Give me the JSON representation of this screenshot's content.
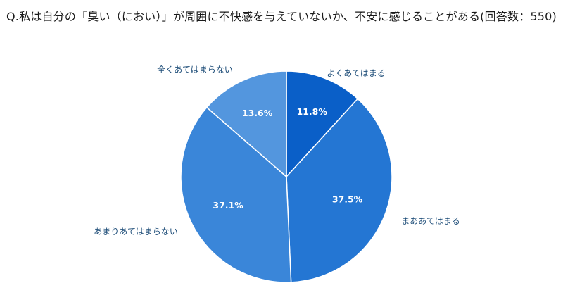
{
  "chart_data": {
    "type": "pie",
    "title": "Q.私は自分の「臭い（におい）」が周囲に不快感を与えていないか、不安に感じることがある(回答数：550)",
    "slices": [
      {
        "label": "よくあてはまる",
        "value": 11.8,
        "value_label": "11.8%",
        "color": "#0a5fc8"
      },
      {
        "label": "まああてはまる",
        "value": 37.5,
        "value_label": "37.5%",
        "color": "#2476d3"
      },
      {
        "label": "あまりあてはまらない",
        "value": 37.1,
        "value_label": "37.1%",
        "color": "#3a86d9"
      },
      {
        "label": "全くあてはまらない",
        "value": 13.6,
        "value_label": "13.6%",
        "color": "#5396de"
      }
    ],
    "start_position": "top",
    "direction": "clockwise",
    "legend": "none"
  }
}
